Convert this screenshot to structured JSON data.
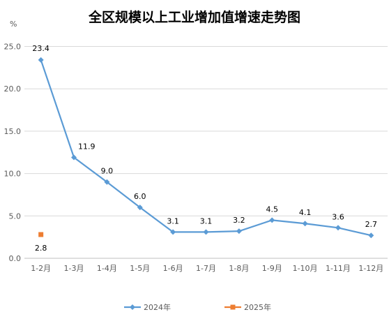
{
  "chart_data": {
    "type": "line",
    "title": "全区规模以上工业增加值增速走势图",
    "ylabel": "%",
    "xlabel": "",
    "ylim": [
      0,
      25
    ],
    "yticks": [
      "0.0",
      "5.0",
      "10.0",
      "15.0",
      "20.0",
      "25.0"
    ],
    "ytick_values": [
      0,
      5,
      10,
      15,
      20,
      25
    ],
    "categories": [
      "1-2月",
      "1-3月",
      "1-4月",
      "1-5月",
      "1-6月",
      "1-7月",
      "1-8月",
      "1-9月",
      "1-10月",
      "1-11月",
      "1-12月"
    ],
    "grid": true,
    "legend_position": "bottom",
    "series": [
      {
        "name": "2024年",
        "color": "#5B9BD5",
        "marker": "diamond",
        "values": [
          23.4,
          11.9,
          9.0,
          6.0,
          3.1,
          3.1,
          3.2,
          4.5,
          4.1,
          3.6,
          2.7
        ],
        "labels": [
          "23.4",
          "11.9",
          "9.0",
          "6.0",
          "3.1",
          "3.1",
          "3.2",
          "4.5",
          "4.1",
          "3.6",
          "2.7"
        ]
      },
      {
        "name": "2025年",
        "color": "#ED7D31",
        "marker": "square",
        "values": [
          2.8,
          null,
          null,
          null,
          null,
          null,
          null,
          null,
          null,
          null,
          null
        ],
        "labels": [
          "2.8",
          null,
          null,
          null,
          null,
          null,
          null,
          null,
          null,
          null,
          null
        ]
      }
    ]
  }
}
